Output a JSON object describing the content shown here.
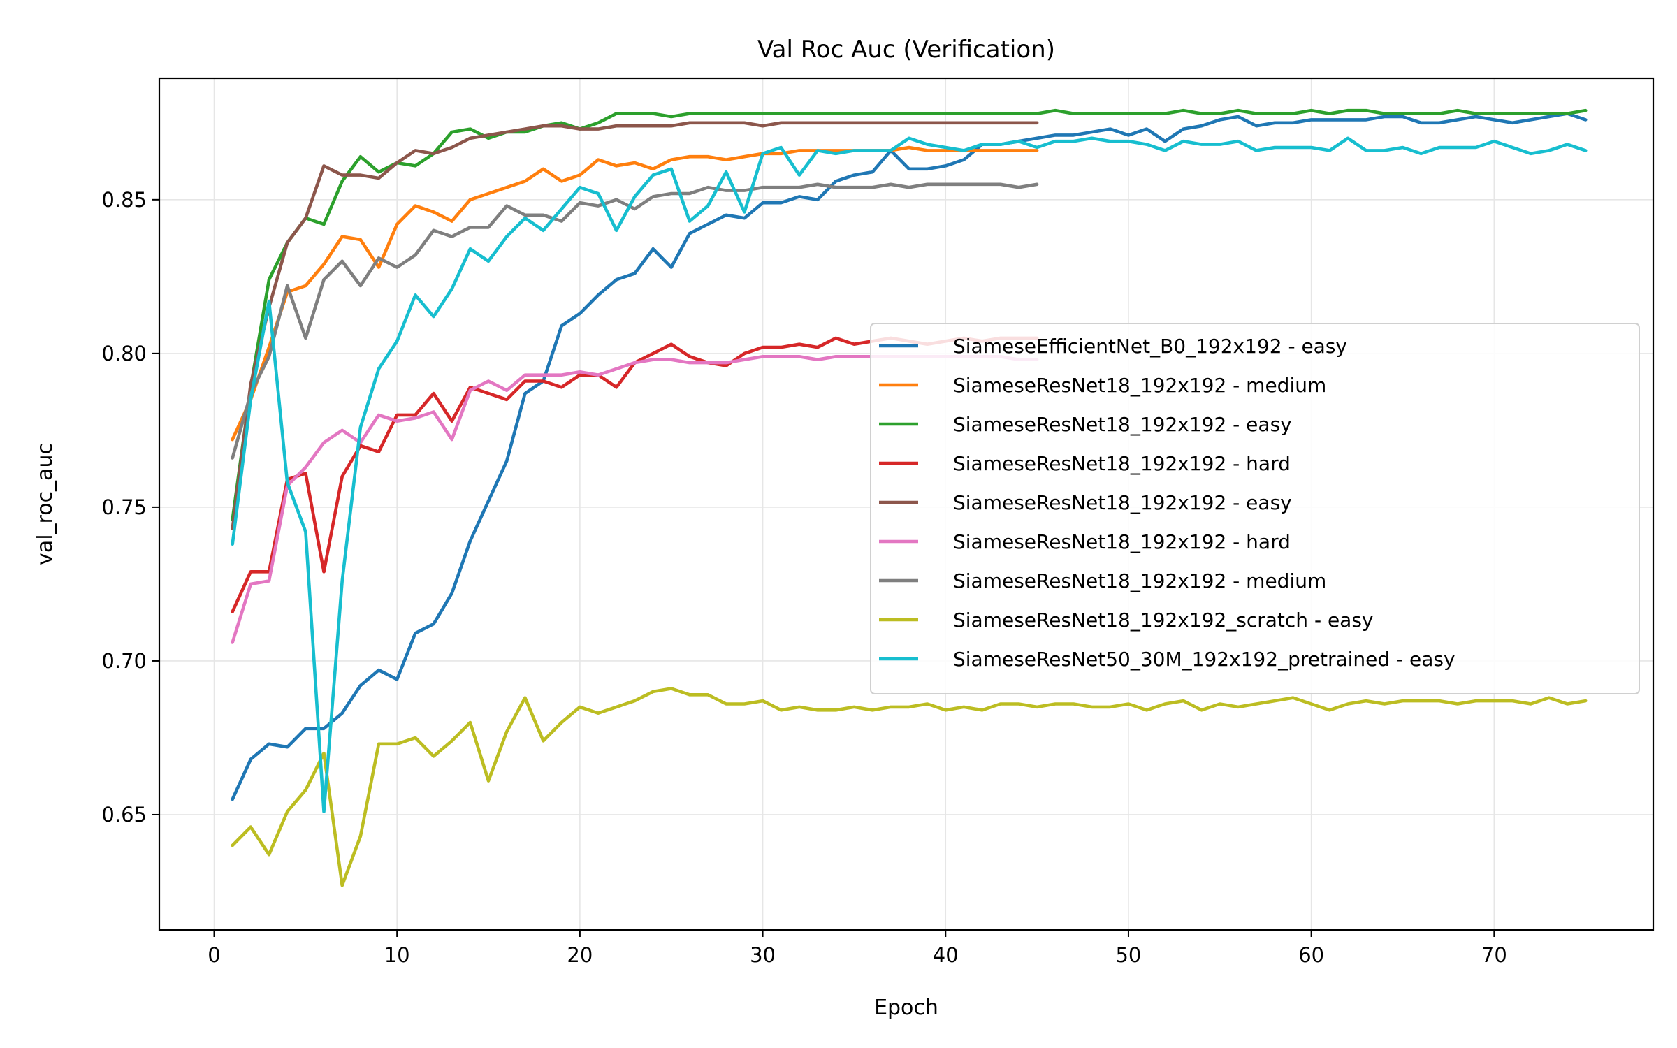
{
  "chart_data": {
    "type": "line",
    "title": "Val Roc Auc (Verification)",
    "xlabel": "Epoch",
    "ylabel": "val_roc_auc",
    "xlim": [
      -3,
      78.7
    ],
    "ylim": [
      0.6125,
      0.8895
    ],
    "xticks": [
      0,
      10,
      20,
      30,
      40,
      50,
      60,
      70
    ],
    "yticks": [
      0.65,
      0.7,
      0.75,
      0.8,
      0.85
    ],
    "ytick_labels": [
      "0.65",
      "0.70",
      "0.75",
      "0.80",
      "0.85"
    ],
    "grid": true,
    "legend_position": "center-right",
    "series": [
      {
        "name": "SiameseEfficientNet_B0_192x192 - easy",
        "color": "#1f77b4",
        "x_start": 1,
        "values": [
          0.655,
          0.668,
          0.673,
          0.672,
          0.678,
          0.678,
          0.683,
          0.692,
          0.697,
          0.694,
          0.709,
          0.712,
          0.722,
          0.739,
          0.752,
          0.765,
          0.787,
          0.791,
          0.809,
          0.813,
          0.819,
          0.824,
          0.826,
          0.834,
          0.828,
          0.839,
          0.842,
          0.845,
          0.844,
          0.849,
          0.849,
          0.851,
          0.85,
          0.856,
          0.858,
          0.859,
          0.866,
          0.86,
          0.86,
          0.861,
          0.863,
          0.868,
          0.868,
          0.869,
          0.87,
          0.871,
          0.871,
          0.872,
          0.873,
          0.871,
          0.873,
          0.869,
          0.873,
          0.874,
          0.876,
          0.877,
          0.874,
          0.875,
          0.875,
          0.876,
          0.876,
          0.876,
          0.876,
          0.877,
          0.877,
          0.875,
          0.875,
          0.876,
          0.877,
          0.876,
          0.875,
          0.876,
          0.877,
          0.878,
          0.876
        ]
      },
      {
        "name": "SiameseResNet18_192x192 - medium",
        "color": "#ff7f0e",
        "x_start": 1,
        "values": [
          0.772,
          0.785,
          0.802,
          0.82,
          0.822,
          0.829,
          0.838,
          0.837,
          0.828,
          0.842,
          0.848,
          0.846,
          0.843,
          0.85,
          0.852,
          0.854,
          0.856,
          0.86,
          0.856,
          0.858,
          0.863,
          0.861,
          0.862,
          0.86,
          0.863,
          0.864,
          0.864,
          0.863,
          0.864,
          0.865,
          0.865,
          0.866,
          0.866,
          0.866,
          0.866,
          0.866,
          0.866,
          0.867,
          0.866,
          0.866,
          0.866,
          0.866,
          0.866,
          0.866,
          0.866
        ]
      },
      {
        "name": "SiameseResNet18_192x192 - easy",
        "color": "#2ca02c",
        "x_start": 1,
        "values": [
          0.746,
          0.789,
          0.824,
          0.836,
          0.844,
          0.842,
          0.856,
          0.864,
          0.859,
          0.862,
          0.861,
          0.865,
          0.872,
          0.873,
          0.87,
          0.872,
          0.872,
          0.874,
          0.875,
          0.873,
          0.875,
          0.878,
          0.878,
          0.878,
          0.877,
          0.878,
          0.878,
          0.878,
          0.878,
          0.878,
          0.878,
          0.878,
          0.878,
          0.878,
          0.878,
          0.878,
          0.878,
          0.878,
          0.878,
          0.878,
          0.878,
          0.878,
          0.878,
          0.878,
          0.878,
          0.879,
          0.878,
          0.878,
          0.878,
          0.878,
          0.878,
          0.878,
          0.879,
          0.878,
          0.878,
          0.879,
          0.878,
          0.878,
          0.878,
          0.879,
          0.878,
          0.879,
          0.879,
          0.878,
          0.878,
          0.878,
          0.878,
          0.879,
          0.878,
          0.878,
          0.878,
          0.878,
          0.878,
          0.878,
          0.879
        ]
      },
      {
        "name": "SiameseResNet18_192x192 - hard",
        "color": "#d62728",
        "x_start": 1,
        "values": [
          0.716,
          0.729,
          0.729,
          0.759,
          0.761,
          0.729,
          0.76,
          0.77,
          0.768,
          0.78,
          0.78,
          0.787,
          0.778,
          0.789,
          0.787,
          0.785,
          0.791,
          0.791,
          0.789,
          0.793,
          0.793,
          0.789,
          0.797,
          0.8,
          0.803,
          0.799,
          0.797,
          0.796,
          0.8,
          0.802,
          0.802,
          0.803,
          0.802,
          0.805,
          0.803,
          0.804,
          0.805,
          0.804,
          0.803,
          0.804,
          0.805,
          0.804,
          0.805,
          0.805,
          0.805
        ]
      },
      {
        "name": "SiameseResNet18_192x192 - easy",
        "color": "#8c564b",
        "x_start": 1,
        "values": [
          0.743,
          0.79,
          0.815,
          0.836,
          0.844,
          0.861,
          0.858,
          0.858,
          0.857,
          0.862,
          0.866,
          0.865,
          0.867,
          0.87,
          0.871,
          0.872,
          0.873,
          0.874,
          0.874,
          0.873,
          0.873,
          0.874,
          0.874,
          0.874,
          0.874,
          0.875,
          0.875,
          0.875,
          0.875,
          0.874,
          0.875,
          0.875,
          0.875,
          0.875,
          0.875,
          0.875,
          0.875,
          0.875,
          0.875,
          0.875,
          0.875,
          0.875,
          0.875,
          0.875,
          0.875
        ]
      },
      {
        "name": "SiameseResNet18_192x192 - hard",
        "color": "#e377c2",
        "x_start": 1,
        "values": [
          0.706,
          0.725,
          0.726,
          0.757,
          0.763,
          0.771,
          0.775,
          0.771,
          0.78,
          0.778,
          0.779,
          0.781,
          0.772,
          0.788,
          0.791,
          0.788,
          0.793,
          0.793,
          0.793,
          0.794,
          0.793,
          0.795,
          0.797,
          0.798,
          0.798,
          0.797,
          0.797,
          0.797,
          0.798,
          0.799,
          0.799,
          0.799,
          0.798,
          0.799,
          0.799,
          0.799,
          0.799,
          0.799,
          0.799,
          0.799,
          0.799,
          0.799,
          0.799,
          0.798,
          0.798
        ]
      },
      {
        "name": "SiameseResNet18_192x192 - medium",
        "color": "#7f7f7f",
        "x_start": 1,
        "values": [
          0.766,
          0.787,
          0.799,
          0.822,
          0.805,
          0.824,
          0.83,
          0.822,
          0.831,
          0.828,
          0.832,
          0.84,
          0.838,
          0.841,
          0.841,
          0.848,
          0.845,
          0.845,
          0.843,
          0.849,
          0.848,
          0.85,
          0.847,
          0.851,
          0.852,
          0.852,
          0.854,
          0.853,
          0.853,
          0.854,
          0.854,
          0.854,
          0.855,
          0.854,
          0.854,
          0.854,
          0.855,
          0.854,
          0.855,
          0.855,
          0.855,
          0.855,
          0.855,
          0.854,
          0.855
        ]
      },
      {
        "name": "SiameseResNet18_192x192_scratch - easy",
        "color": "#bcbd22",
        "x_start": 1,
        "values": [
          0.64,
          0.646,
          0.637,
          0.651,
          0.658,
          0.67,
          0.627,
          0.643,
          0.673,
          0.673,
          0.675,
          0.669,
          0.674,
          0.68,
          0.661,
          0.677,
          0.688,
          0.674,
          0.68,
          0.685,
          0.683,
          0.685,
          0.687,
          0.69,
          0.691,
          0.689,
          0.689,
          0.686,
          0.686,
          0.687,
          0.684,
          0.685,
          0.684,
          0.684,
          0.685,
          0.684,
          0.685,
          0.685,
          0.686,
          0.684,
          0.685,
          0.684,
          0.686,
          0.686,
          0.685,
          0.686,
          0.686,
          0.685,
          0.685,
          0.686,
          0.684,
          0.686,
          0.687,
          0.684,
          0.686,
          0.685,
          0.686,
          0.687,
          0.688,
          0.686,
          0.684,
          0.686,
          0.687,
          0.686,
          0.687,
          0.687,
          0.687,
          0.686,
          0.687,
          0.687,
          0.687,
          0.686,
          0.688,
          0.686,
          0.687
        ]
      },
      {
        "name": "SiameseResNet50_30M_192x192_pretrained - easy",
        "color": "#17becf",
        "x_start": 1,
        "values": [
          0.738,
          0.785,
          0.817,
          0.758,
          0.742,
          0.651,
          0.726,
          0.776,
          0.795,
          0.804,
          0.819,
          0.812,
          0.821,
          0.834,
          0.83,
          0.838,
          0.844,
          0.84,
          0.847,
          0.854,
          0.852,
          0.84,
          0.851,
          0.858,
          0.86,
          0.843,
          0.848,
          0.859,
          0.846,
          0.865,
          0.867,
          0.858,
          0.866,
          0.865,
          0.866,
          0.866,
          0.866,
          0.87,
          0.868,
          0.867,
          0.866,
          0.868,
          0.868,
          0.869,
          0.867,
          0.869,
          0.869,
          0.87,
          0.869,
          0.869,
          0.868,
          0.866,
          0.869,
          0.868,
          0.868,
          0.869,
          0.866,
          0.867,
          0.867,
          0.867,
          0.866,
          0.87,
          0.866,
          0.866,
          0.867,
          0.865,
          0.867,
          0.867,
          0.867,
          0.869,
          0.867,
          0.865,
          0.866,
          0.868,
          0.866
        ]
      }
    ]
  }
}
